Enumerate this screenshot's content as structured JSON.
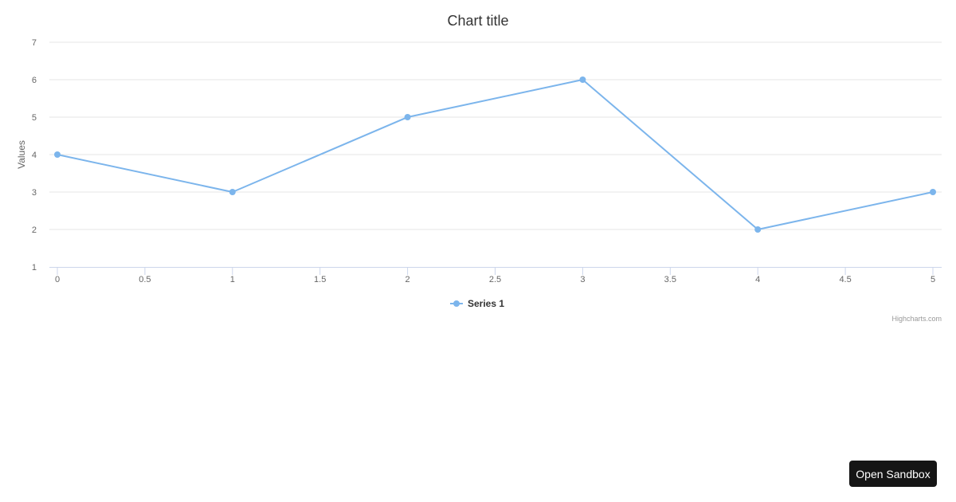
{
  "chart_data": {
    "type": "line",
    "title": "Chart title",
    "xlabel": "",
    "ylabel": "Values",
    "x": [
      0,
      1,
      2,
      3,
      4,
      5
    ],
    "series": [
      {
        "name": "Series 1",
        "values": [
          4,
          3,
          5,
          6,
          2,
          3
        ],
        "color": "#7cb5ec"
      }
    ],
    "xlim": [
      0,
      5
    ],
    "ylim": [
      1,
      7
    ],
    "xticks": [
      "0",
      "0.5",
      "1",
      "1.5",
      "2",
      "2.5",
      "3",
      "3.5",
      "4",
      "4.5",
      "5"
    ],
    "yticks": [
      "1",
      "2",
      "3",
      "4",
      "5",
      "6",
      "7"
    ],
    "grid": "horizontal",
    "legend": "bottom-center",
    "credits": "Highcharts.com"
  },
  "sandbox": {
    "label": "Open Sandbox"
  }
}
